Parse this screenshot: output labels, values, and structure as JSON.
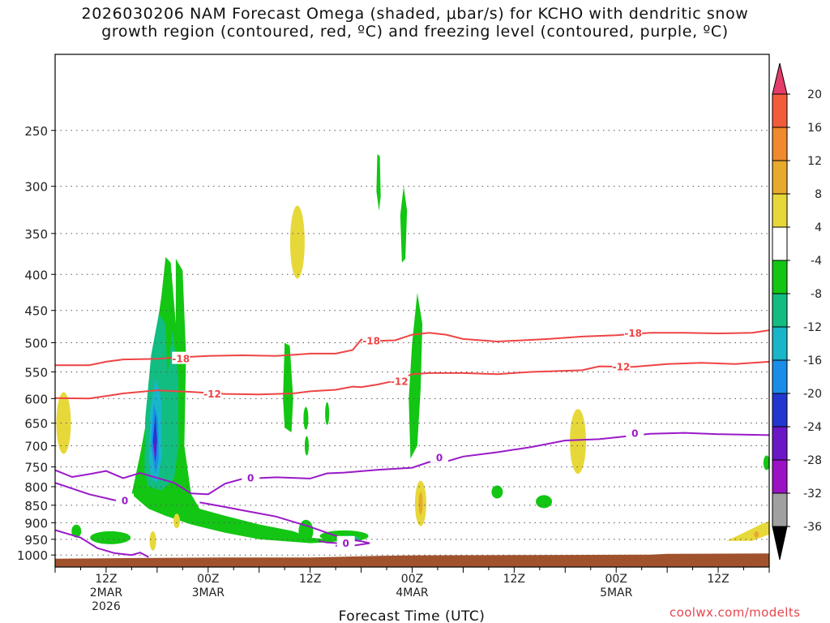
{
  "chart_data": {
    "type": "time-height contour",
    "title_line1": "2026030206 NAM Forecast Omega (shaded, μbar/s) for KCHO with dendritic snow",
    "title_line2": "growth region (contoured, red, ºC) and freezing level (contoured, purple, ºC)",
    "xlabel": "Forecast Time (UTC)",
    "credit": "coolwx.com/modelts",
    "y_scale": "log-pressure",
    "y_ticks": [
      250,
      300,
      350,
      400,
      450,
      500,
      550,
      600,
      650,
      700,
      750,
      800,
      850,
      900,
      950,
      1000
    ],
    "y_range_hPa": [
      195,
      1040
    ],
    "x_range_hours": [
      0,
      84
    ],
    "x_ticks": [
      {
        "h": 6,
        "l1": "12Z",
        "l2": "2MAR",
        "l3": "2026"
      },
      {
        "h": 18,
        "l1": "00Z",
        "l2": "3MAR",
        "l3": ""
      },
      {
        "h": 30,
        "l1": "12Z",
        "l2": "",
        "l3": ""
      },
      {
        "h": 42,
        "l1": "00Z",
        "l2": "4MAR",
        "l3": ""
      },
      {
        "h": 54,
        "l1": "12Z",
        "l2": "",
        "l3": ""
      },
      {
        "h": 66,
        "l1": "00Z",
        "l2": "5MAR",
        "l3": ""
      },
      {
        "h": 78,
        "l1": "12Z",
        "l2": "",
        "l3": ""
      }
    ],
    "colorbar": {
      "labels": [
        "20",
        "16",
        "12",
        "8",
        "4",
        "-4",
        "-8",
        "-12",
        "-16",
        "-20",
        "-24",
        "-28",
        "-32",
        "-36"
      ],
      "colors": [
        "#e53c6a",
        "#f25c3a",
        "#f08a2c",
        "#e8aa2c",
        "#e7d83a",
        "#ffffff",
        "#13c613",
        "#11bd80",
        "#19b5c9",
        "#1a8de8",
        "#2236d0",
        "#6b17c7",
        "#9a12c4",
        "#a0a0a0",
        "#000000"
      ]
    },
    "contour_labels": {
      "dgz_cold": "-18",
      "dgz_warm": "-12",
      "freezing": "0"
    },
    "series": [
      {
        "values": [
          [
            0,
            538
          ],
          [
            4,
            538
          ],
          [
            6,
            532
          ],
          [
            8,
            528
          ],
          [
            12,
            527
          ],
          [
            14,
            525
          ],
          [
            18,
            522
          ],
          [
            22,
            521
          ],
          [
            26,
            522
          ],
          [
            30,
            518
          ],
          [
            33,
            518
          ],
          [
            35,
            512
          ],
          [
            36,
            495
          ],
          [
            38,
            497
          ],
          [
            40,
            496
          ],
          [
            42,
            487
          ],
          [
            44,
            484
          ],
          [
            46,
            487
          ],
          [
            48,
            494
          ],
          [
            52,
            498
          ],
          [
            55,
            496
          ],
          [
            58,
            494
          ],
          [
            62,
            490
          ],
          [
            66,
            488
          ],
          [
            70,
            484
          ],
          [
            74,
            484
          ],
          [
            78,
            485
          ],
          [
            82,
            484
          ],
          [
            84,
            480
          ]
        ]
      },
      {
        "values": [
          [
            0,
            599
          ],
          [
            4,
            600
          ],
          [
            6,
            595
          ],
          [
            8,
            590
          ],
          [
            12,
            584
          ],
          [
            16,
            587
          ],
          [
            20,
            591
          ],
          [
            24,
            592
          ],
          [
            28,
            590
          ],
          [
            30,
            586
          ],
          [
            33,
            583
          ],
          [
            35,
            577
          ],
          [
            36,
            578
          ],
          [
            38,
            573
          ],
          [
            40,
            566
          ],
          [
            42,
            554
          ],
          [
            44,
            552
          ],
          [
            48,
            552
          ],
          [
            52,
            554
          ],
          [
            56,
            550
          ],
          [
            62,
            547
          ],
          [
            64,
            540
          ],
          [
            68,
            541
          ],
          [
            72,
            536
          ],
          [
            76,
            534
          ],
          [
            80,
            536
          ],
          [
            84,
            532
          ]
        ]
      },
      {
        "values": [
          [
            0,
            758
          ],
          [
            2,
            775
          ],
          [
            4,
            768
          ],
          [
            6,
            760
          ],
          [
            8,
            778
          ],
          [
            10,
            765
          ],
          [
            14,
            790
          ],
          [
            16,
            818
          ],
          [
            18,
            820
          ],
          [
            20,
            792
          ],
          [
            22,
            780
          ],
          [
            26,
            776
          ],
          [
            30,
            779
          ],
          [
            32,
            766
          ],
          [
            34,
            764
          ],
          [
            38,
            757
          ],
          [
            42,
            752
          ],
          [
            44,
            738
          ],
          [
            46,
            737
          ],
          [
            48,
            725
          ],
          [
            52,
            715
          ],
          [
            56,
            703
          ],
          [
            60,
            688
          ],
          [
            64,
            685
          ],
          [
            68,
            677
          ],
          [
            70,
            673
          ],
          [
            74,
            671
          ],
          [
            78,
            674
          ],
          [
            84,
            676
          ]
        ]
      },
      {
        "values": [
          [
            0,
            790
          ],
          [
            4,
            820
          ],
          [
            7,
            836
          ],
          [
            9,
            840
          ]
        ]
      },
      {
        "values": [
          [
            0,
            922
          ],
          [
            3,
            945
          ],
          [
            5,
            978
          ],
          [
            7,
            994
          ],
          [
            9,
            1000
          ],
          [
            10,
            992
          ],
          [
            11,
            1007
          ]
        ]
      },
      {
        "values": [
          [
            17,
            842
          ],
          [
            20,
            855
          ],
          [
            22,
            864
          ],
          [
            24,
            873
          ],
          [
            26,
            882
          ],
          [
            28,
            897
          ],
          [
            30,
            912
          ],
          [
            32,
            930
          ],
          [
            34,
            948
          ],
          [
            36,
            956
          ],
          [
            37,
            962
          ],
          [
            35,
            970
          ],
          [
            33,
            970
          ]
        ]
      },
      {
        "values": [
          [
            31,
            955
          ],
          [
            32,
            960
          ],
          [
            34,
            963
          ]
        ]
      }
    ]
  }
}
